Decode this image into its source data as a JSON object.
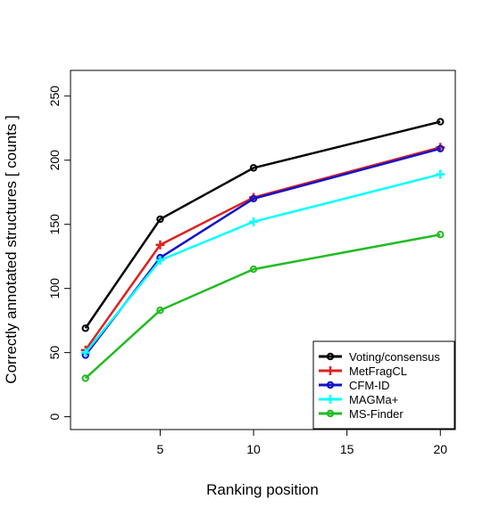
{
  "chart_data": {
    "type": "line",
    "title": "",
    "xlabel": "Ranking position",
    "ylabel": "Correctly annotated structures [ counts ]",
    "x": [
      1,
      5,
      10,
      20
    ],
    "xticks": [
      5,
      10,
      15,
      20
    ],
    "yticks": [
      0,
      50,
      100,
      150,
      200,
      250
    ],
    "xlim": [
      0.2,
      20.8
    ],
    "ylim": [
      -10,
      270
    ],
    "grid": false,
    "legend_position": "bottom-right",
    "series": [
      {
        "name": "Voting/consensus",
        "color": "#000000",
        "marker": "circle",
        "values": [
          69,
          154,
          194,
          230
        ]
      },
      {
        "name": "MetFragCL",
        "color": "#dd2222",
        "marker": "plus",
        "values": [
          52,
          134,
          171,
          210
        ]
      },
      {
        "name": "CFM-ID",
        "color": "#1111cc",
        "marker": "circle",
        "values": [
          48,
          124,
          170,
          209
        ]
      },
      {
        "name": "MAGMa+",
        "color": "#00ffff",
        "marker": "plus",
        "values": [
          50,
          122,
          152,
          189
        ]
      },
      {
        "name": "MS-Finder",
        "color": "#22bb22",
        "marker": "circle",
        "values": [
          30,
          83,
          115,
          142
        ]
      }
    ]
  }
}
